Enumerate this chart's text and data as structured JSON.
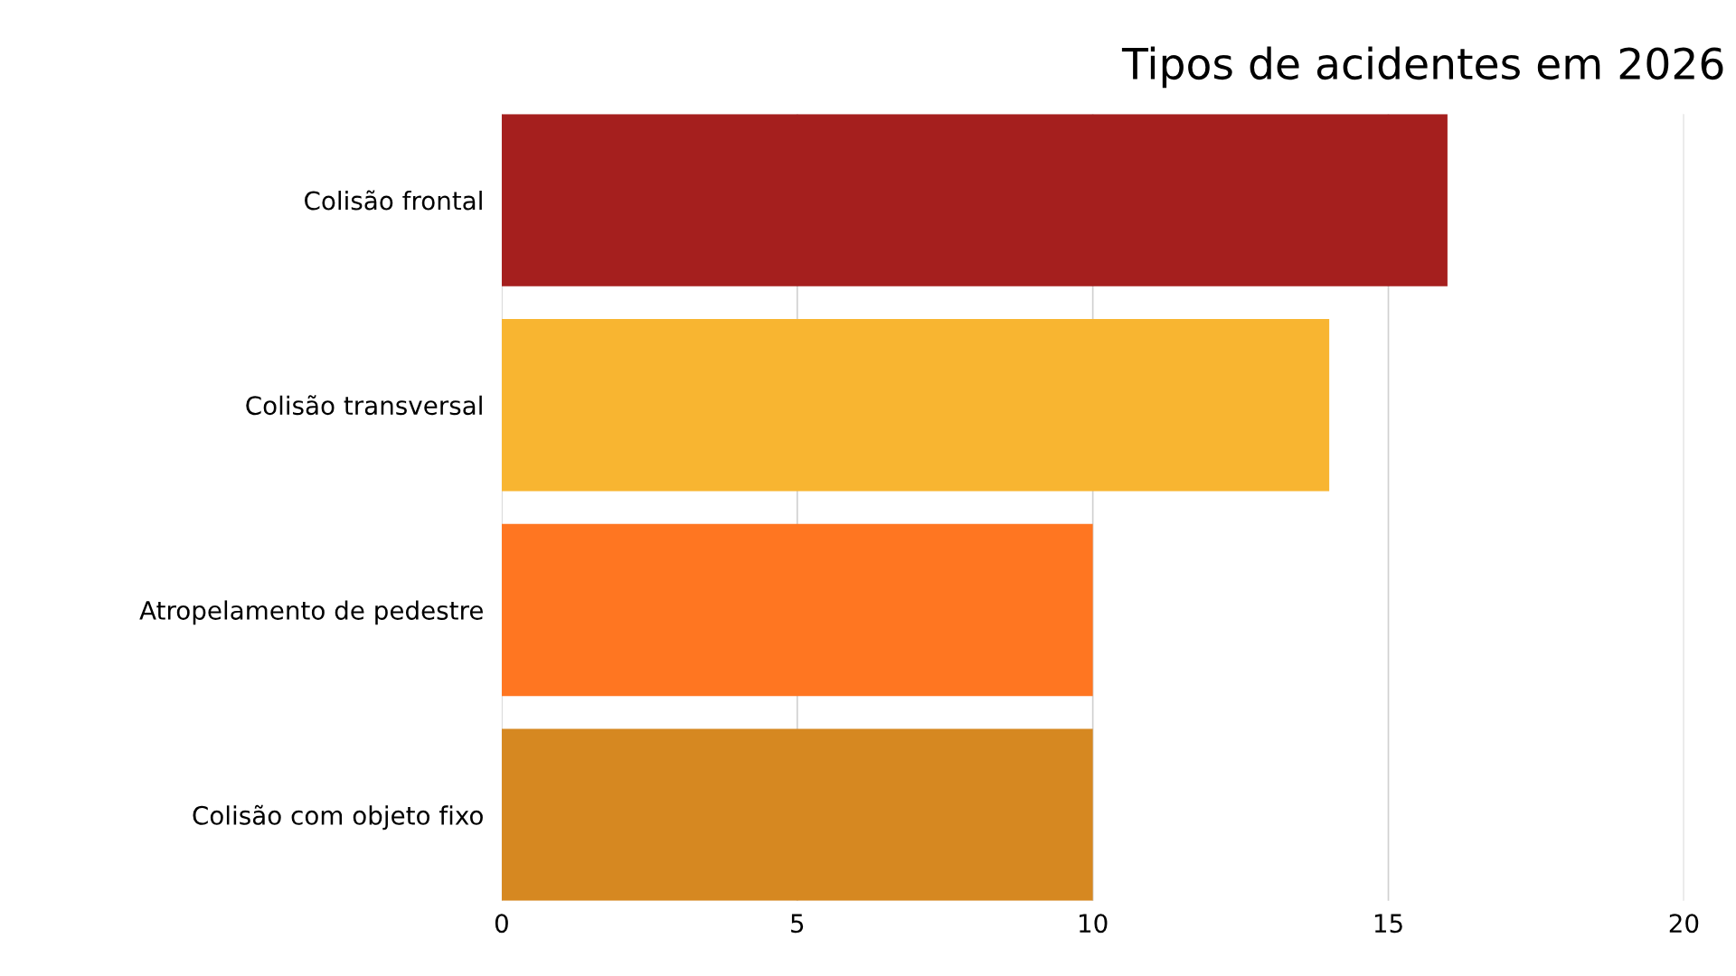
{
  "chart_data": {
    "type": "bar",
    "orientation": "horizontal",
    "title": "Tipos de acidentes em 2026",
    "categories": [
      "Colisão frontal",
      "Colisão transversal",
      "Atropelamento de pedestre",
      "Colisão com objeto fixo"
    ],
    "values": [
      16,
      14,
      10,
      10
    ],
    "colors": [
      "#a51f1e",
      "#f8b531",
      "#ff7621",
      "#d68821"
    ],
    "xlim": [
      0,
      20
    ],
    "xticks": [
      0,
      5,
      10,
      15,
      20
    ],
    "grid": "x",
    "legend": false
  }
}
